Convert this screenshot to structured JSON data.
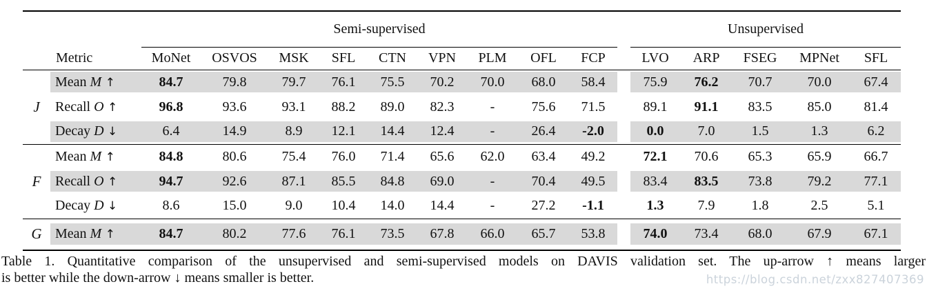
{
  "table": {
    "group_headers": {
      "semi": "Semi-supervised",
      "unsup": "Unsupervised"
    },
    "metric_header": "Metric",
    "columns_semi": [
      "MoNet",
      "OSVOS",
      "MSK",
      "SFL",
      "CTN",
      "VPN",
      "PLM",
      "OFL",
      "FCP"
    ],
    "columns_unsup": [
      "LVO",
      "ARP",
      "FSEG",
      "MPNet",
      "SFL"
    ],
    "groups": [
      {
        "id": "J",
        "symbol": "J",
        "rows": [
          {
            "metric": "Mean",
            "symbol": "M",
            "arrow": "↑",
            "shaded": true,
            "bold": [
              0,
              10
            ],
            "values": [
              "84.7",
              "79.8",
              "79.7",
              "76.1",
              "75.5",
              "70.2",
              "70.0",
              "68.0",
              "58.4",
              "75.9",
              "76.2",
              "70.7",
              "70.0",
              "67.4"
            ]
          },
          {
            "metric": "Recall",
            "symbol": "O",
            "arrow": "↑",
            "shaded": false,
            "bold": [
              0,
              10
            ],
            "values": [
              "96.8",
              "93.6",
              "93.1",
              "88.2",
              "89.0",
              "82.3",
              "-",
              "75.6",
              "71.5",
              "89.1",
              "91.1",
              "83.5",
              "85.0",
              "81.4"
            ]
          },
          {
            "metric": "Decay",
            "symbol": "D",
            "arrow": "↓",
            "shaded": true,
            "bold": [
              8,
              9
            ],
            "values": [
              "6.4",
              "14.9",
              "8.9",
              "12.1",
              "14.4",
              "12.4",
              "-",
              "26.4",
              "-2.0",
              "0.0",
              "7.0",
              "1.5",
              "1.3",
              "6.2"
            ]
          }
        ]
      },
      {
        "id": "F",
        "symbol": "F",
        "rows": [
          {
            "metric": "Mean",
            "symbol": "M",
            "arrow": "↑",
            "shaded": false,
            "bold": [
              0,
              9
            ],
            "values": [
              "84.8",
              "80.6",
              "75.4",
              "76.0",
              "71.4",
              "65.6",
              "62.0",
              "63.4",
              "49.2",
              "72.1",
              "70.6",
              "65.3",
              "65.9",
              "66.7"
            ]
          },
          {
            "metric": "Recall",
            "symbol": "O",
            "arrow": "↑",
            "shaded": true,
            "bold": [
              0,
              10
            ],
            "values": [
              "94.7",
              "92.6",
              "87.1",
              "85.5",
              "84.8",
              "69.0",
              "-",
              "70.4",
              "49.5",
              "83.4",
              "83.5",
              "73.8",
              "79.2",
              "77.1"
            ]
          },
          {
            "metric": "Decay",
            "symbol": "D",
            "arrow": "↓",
            "shaded": false,
            "bold": [
              8,
              9
            ],
            "values": [
              "8.6",
              "15.0",
              "9.0",
              "10.4",
              "14.0",
              "14.4",
              "-",
              "27.2",
              "-1.1",
              "1.3",
              "7.9",
              "1.8",
              "2.5",
              "5.1"
            ]
          }
        ]
      },
      {
        "id": "G",
        "symbol": "G",
        "rows": [
          {
            "metric": "Mean",
            "symbol": "M",
            "arrow": "↑",
            "shaded": true,
            "bold": [
              0,
              9
            ],
            "values": [
              "84.7",
              "80.2",
              "77.6",
              "76.1",
              "73.5",
              "67.8",
              "66.0",
              "65.7",
              "53.8",
              "74.0",
              "73.4",
              "68.0",
              "67.9",
              "67.1"
            ]
          }
        ]
      }
    ]
  },
  "caption": {
    "line1": "Table 1. Quantitative comparison of the unsupervised and semi-supervised models on DAVIS validation set. The up-arrow ↑ means larger",
    "line2": "is better while the down-arrow ↓ means smaller is better."
  },
  "watermark": "https://blog.csdn.net/zxx827407369"
}
